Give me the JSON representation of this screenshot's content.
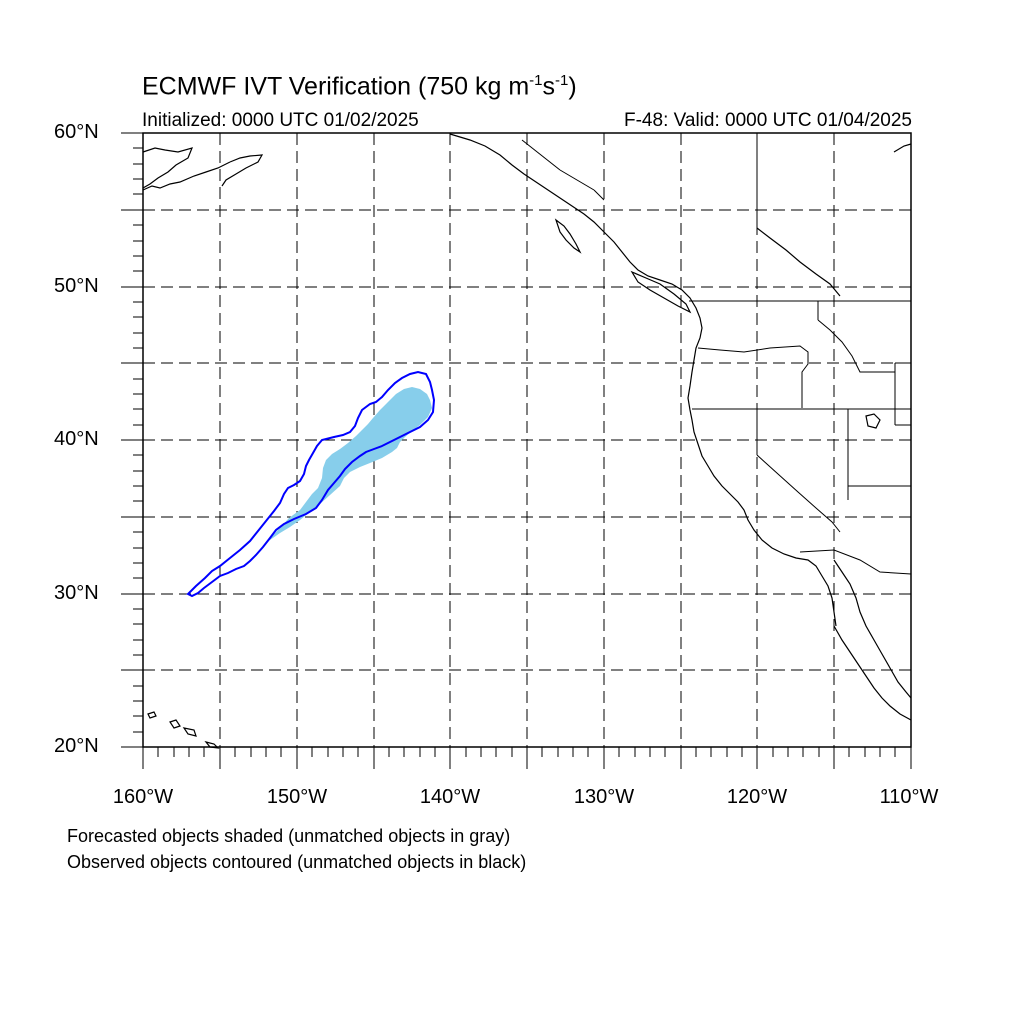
{
  "title": {
    "main": "ECMWF IVT Verification (750 kg m",
    "sup1": "-1",
    "mid": "s",
    "sup2": "-1",
    "end": ")"
  },
  "initialized": "Initialized: 0000 UTC 01/02/2025",
  "valid": "F-48: Valid: 0000 UTC 01/04/2025",
  "axes": {
    "lat_labels": [
      "60°N",
      "50°N",
      "40°N",
      "30°N",
      "20°N"
    ],
    "lon_labels": [
      "160°W",
      "150°W",
      "140°W",
      "130°W",
      "120°W",
      "110°W"
    ],
    "lat_range": [
      20,
      60
    ],
    "lon_range": [
      -160,
      -110
    ]
  },
  "legend": {
    "forecast": "Forecasted objects shaded (unmatched objects in gray)",
    "observed": "Observed objects contoured (unmatched objects in black)"
  },
  "colors": {
    "forecast_fill": "#87ceeb",
    "observed_contour": "#0000ff",
    "coastline": "#000000",
    "grid": "#000000"
  }
}
